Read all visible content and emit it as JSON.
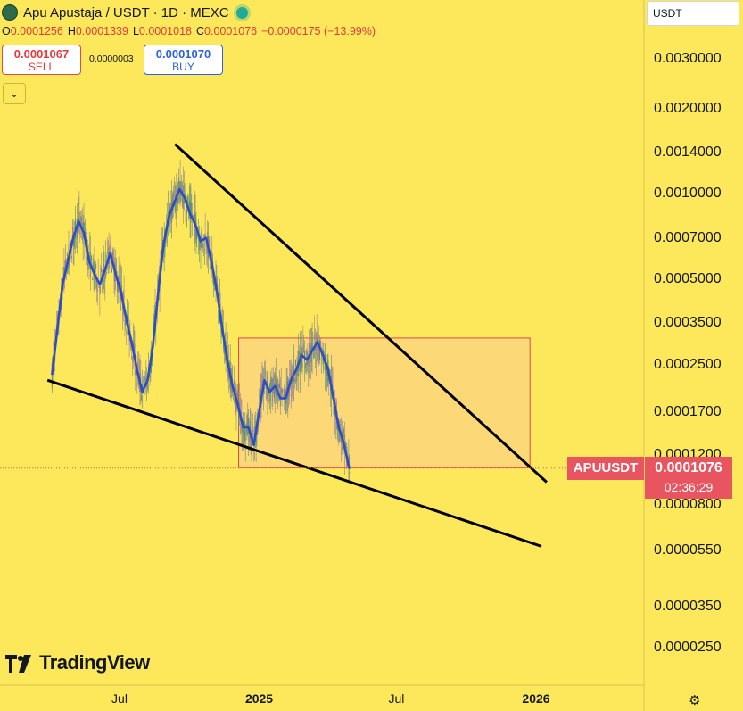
{
  "header": {
    "title": "Apu Apustaja / USDT · 1D · MEXC",
    "ohlc": [
      {
        "key": "O",
        "value": "0.0001256"
      },
      {
        "key": "H",
        "value": "0.0001339"
      },
      {
        "key": "L",
        "value": "0.0001018"
      },
      {
        "key": "C",
        "value": "0.0001076"
      },
      {
        "key": "",
        "value": "−0.0000175 (−13.99%)"
      }
    ]
  },
  "trade": {
    "sell_price": "0.0001067",
    "sell_label": "SELL",
    "spread": "0.0000003",
    "buy_price": "0.0001070",
    "buy_label": "BUY"
  },
  "currency_selector": "USDT",
  "last_price": {
    "symbol": "APUUSDT",
    "price": "0.0001076",
    "countdown": "02:36:29"
  },
  "brand": "TradingView",
  "colors": {
    "background": "#fde85c",
    "ma_line": "#2b4ec2",
    "candle": "#8a9a8a",
    "trendline": "#000000",
    "range_box_border": "#e04a4a",
    "range_box_fill": "#fbd67a",
    "price_label": "#e85560"
  },
  "chart_data": {
    "type": "candlestick",
    "symbol": "APUUSDT",
    "timeframe": "1D",
    "y_scale": "log",
    "y_ticks": [
      {
        "label": "0.0030000",
        "value": 0.003
      },
      {
        "label": "0.0020000",
        "value": 0.002
      },
      {
        "label": "0.0014000",
        "value": 0.0014
      },
      {
        "label": "0.0010000",
        "value": 0.001
      },
      {
        "label": "0.0007000",
        "value": 0.0007
      },
      {
        "label": "0.0005000",
        "value": 0.0005
      },
      {
        "label": "0.0003500",
        "value": 0.00035
      },
      {
        "label": "0.0002500",
        "value": 0.00025
      },
      {
        "label": "0.0001700",
        "value": 0.00017
      },
      {
        "label": "0.0001200",
        "value": 0.00012
      },
      {
        "label": "0.0000800",
        "value": 8e-05
      },
      {
        "label": "0.0000550",
        "value": 5.5e-05
      },
      {
        "label": "0.0000350",
        "value": 3.5e-05
      },
      {
        "label": "0.0000250",
        "value": 2.5e-05
      }
    ],
    "x_ticks": [
      {
        "label": "Jul",
        "date": "2024-07-01",
        "bold": false
      },
      {
        "label": "2025",
        "date": "2025-01-01",
        "bold": true
      },
      {
        "label": "Jul",
        "date": "2025-07-01",
        "bold": false
      },
      {
        "label": "2026",
        "date": "2026-01-01",
        "bold": true
      }
    ],
    "ma_points": [
      [
        "2024-04-03",
        0.00023
      ],
      [
        "2024-04-10",
        0.00033
      ],
      [
        "2024-04-17",
        0.00048
      ],
      [
        "2024-04-24",
        0.00058
      ],
      [
        "2024-05-01",
        0.0007
      ],
      [
        "2024-05-08",
        0.0008
      ],
      [
        "2024-05-15",
        0.00073
      ],
      [
        "2024-05-22",
        0.00058
      ],
      [
        "2024-05-29",
        0.00052
      ],
      [
        "2024-06-05",
        0.00048
      ],
      [
        "2024-06-12",
        0.00054
      ],
      [
        "2024-06-19",
        0.00062
      ],
      [
        "2024-06-26",
        0.00052
      ],
      [
        "2024-07-03",
        0.00045
      ],
      [
        "2024-07-10",
        0.00036
      ],
      [
        "2024-07-17",
        0.0003
      ],
      [
        "2024-07-24",
        0.00024
      ],
      [
        "2024-07-31",
        0.0002
      ],
      [
        "2024-08-07",
        0.00022
      ],
      [
        "2024-08-14",
        0.00029
      ],
      [
        "2024-08-21",
        0.00045
      ],
      [
        "2024-08-28",
        0.00066
      ],
      [
        "2024-09-04",
        0.00083
      ],
      [
        "2024-09-11",
        0.00093
      ],
      [
        "2024-09-18",
        0.00104
      ],
      [
        "2024-09-25",
        0.00097
      ],
      [
        "2024-10-02",
        0.00085
      ],
      [
        "2024-10-09",
        0.00078
      ],
      [
        "2024-10-16",
        0.00068
      ],
      [
        "2024-10-23",
        0.0007
      ],
      [
        "2024-10-30",
        0.00058
      ],
      [
        "2024-11-06",
        0.00046
      ],
      [
        "2024-11-13",
        0.00034
      ],
      [
        "2024-11-20",
        0.00026
      ],
      [
        "2024-11-27",
        0.00021
      ],
      [
        "2024-12-04",
        0.00018
      ],
      [
        "2024-12-11",
        0.00015
      ],
      [
        "2024-12-18",
        0.00015
      ],
      [
        "2024-12-25",
        0.00013
      ],
      [
        "2025-01-01",
        0.00017
      ],
      [
        "2025-01-08",
        0.00022
      ],
      [
        "2025-01-15",
        0.0002
      ],
      [
        "2025-01-22",
        0.00021
      ],
      [
        "2025-01-29",
        0.00019
      ],
      [
        "2025-02-05",
        0.00019
      ],
      [
        "2025-02-12",
        0.00022
      ],
      [
        "2025-02-19",
        0.00024
      ],
      [
        "2025-02-26",
        0.00027
      ],
      [
        "2025-03-05",
        0.00026
      ],
      [
        "2025-03-12",
        0.00028
      ],
      [
        "2025-03-19",
        0.0003
      ],
      [
        "2025-03-26",
        0.00027
      ],
      [
        "2025-04-02",
        0.00024
      ],
      [
        "2025-04-09",
        0.00019
      ],
      [
        "2025-04-16",
        0.00015
      ],
      [
        "2025-04-23",
        0.00013
      ],
      [
        "2025-04-30",
        0.000107
      ]
    ],
    "candle_data_note": "",
    "price_high": 0.00145,
    "price_low": 9.75e-05,
    "last_price": 0.0001076,
    "trendlines": [
      {
        "from": [
          "2024-09-12",
          0.0015
        ],
        "to": [
          "2026-01-15",
          9.6e-05
        ]
      },
      {
        "from": [
          "2024-03-28",
          0.00022
        ],
        "to": [
          "2026-01-08",
          5.7e-05
        ]
      }
    ],
    "range_box": {
      "x_from": "2024-12-05",
      "x_to": "2025-12-24",
      "y_from": 0.00031,
      "y_to": 0.000108
    },
    "date_range": [
      "2024-03-28",
      "2026-01-15"
    ]
  }
}
